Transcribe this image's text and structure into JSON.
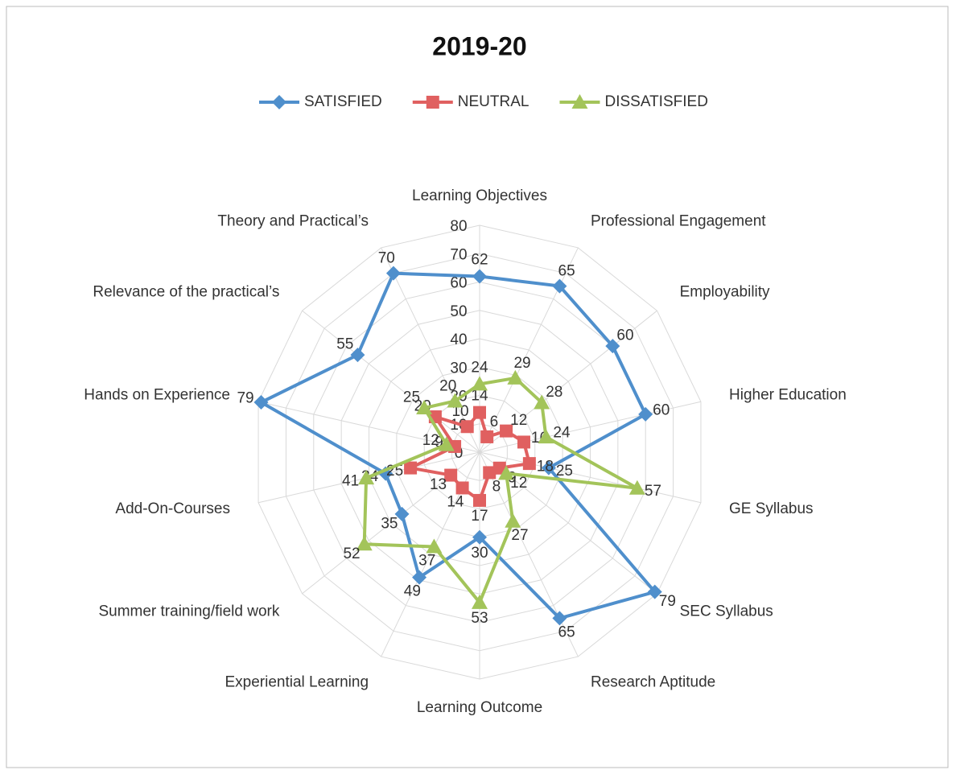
{
  "chart_data": {
    "type": "radar",
    "title": "2019-20",
    "categories": [
      "Learning Objectives",
      "Professional Engagement",
      "Employability",
      "Higher Education",
      "GE Syllabus",
      "SEC Syllabus",
      "Research Aptitude",
      "Learning Outcome",
      "Experiential Learning",
      "Summer training/field work",
      "Add-On-Courses",
      "Hands on Experience",
      "Relevance of the practical’s",
      "Theory and Practical’s"
    ],
    "series": [
      {
        "name": "SATISFIED",
        "color": "#4f8fcc",
        "marker": "diamond",
        "values": [
          62,
          65,
          60,
          60,
          25,
          79,
          65,
          30,
          49,
          35,
          34,
          79,
          55,
          70
        ]
      },
      {
        "name": "NEUTRAL",
        "color": "#e06060",
        "marker": "square",
        "values": [
          14,
          6,
          12,
          16,
          18,
          9,
          8,
          17,
          14,
          13,
          25,
          9,
          20,
          10
        ]
      },
      {
        "name": "DISSATISFIED",
        "color": "#a3c45a",
        "marker": "triangle",
        "values": [
          24,
          29,
          28,
          24,
          57,
          12,
          27,
          53,
          37,
          52,
          41,
          12,
          25,
          20
        ]
      }
    ],
    "ylim": [
      0,
      80
    ],
    "yticks": [
      0,
      10,
      20,
      30,
      40,
      50,
      60,
      70,
      80
    ],
    "grid": true,
    "legend": "top"
  }
}
